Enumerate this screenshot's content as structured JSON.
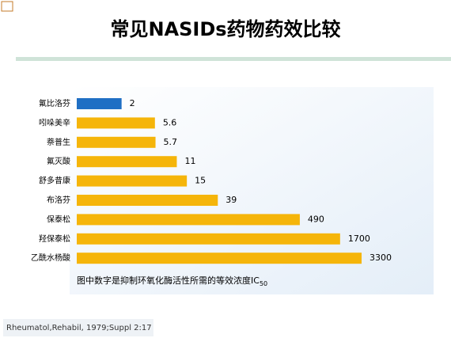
{
  "title": "常见NASIDs药物药效比较",
  "chart_data": {
    "type": "bar",
    "orientation": "horizontal",
    "xscale": "log",
    "categories": [
      "氟比洛芬",
      "吲哚美辛",
      "萘普生",
      "氟灭酸",
      "舒多昔康",
      "布洛芬",
      "保泰松",
      "羟保泰松",
      "乙酰水杨酸"
    ],
    "values": [
      2,
      5.6,
      5.7,
      11,
      15,
      39,
      490,
      1700,
      3300
    ],
    "colors": [
      "#1f6fc4",
      "#f5b50a",
      "#f5b50a",
      "#f5b50a",
      "#f5b50a",
      "#f5b50a",
      "#f5b50a",
      "#f5b50a",
      "#f5b50a"
    ],
    "note": "图中数字是抑制环氧化酶活性所需的等效浓度IC",
    "note_subscript": "50"
  },
  "citation": "Rheumatol,Rehabil, 1979;Suppl 2:17"
}
